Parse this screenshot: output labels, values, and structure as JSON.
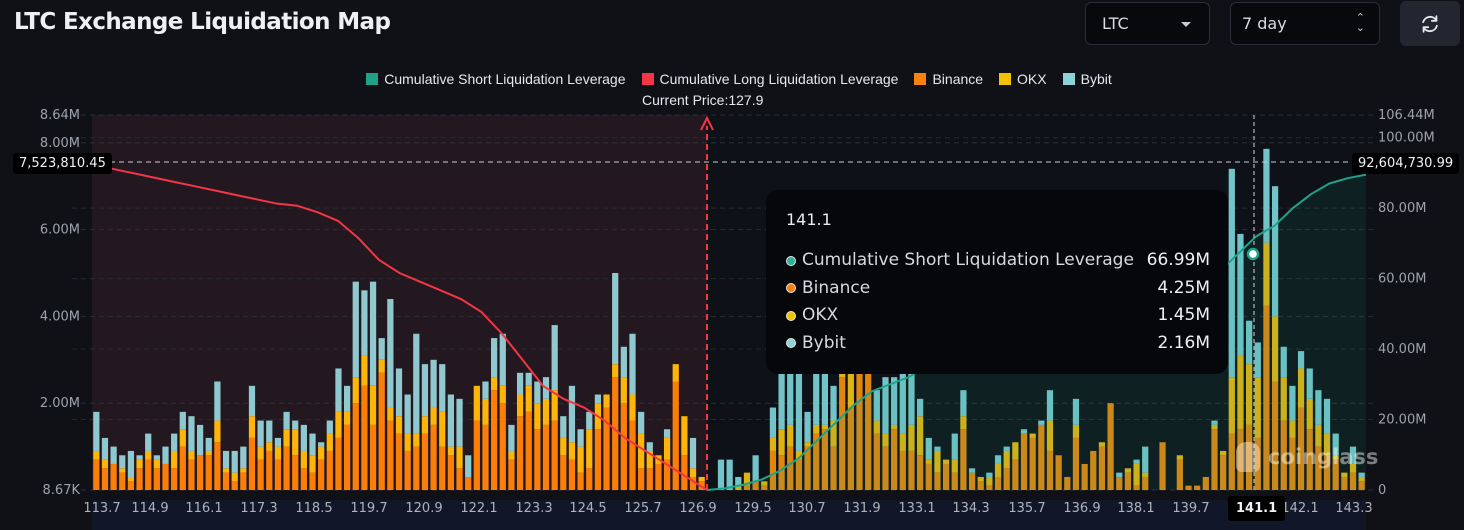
{
  "header": {
    "title": "LTC Exchange Liquidation Map",
    "coin_select": {
      "value": "LTC",
      "icon": "caret-down-icon"
    },
    "range_select": {
      "value": "7 day",
      "icon": "up-down-chevron-icon"
    },
    "refresh_button": {
      "icon": "refresh-icon"
    }
  },
  "chart_data": {
    "type": "bar",
    "title": "LTC Exchange Liquidation Map",
    "legend": [
      {
        "name": "Cumulative Short Liquidation Leverage",
        "color": "#1fa28a"
      },
      {
        "name": "Cumulative Long Liquidation Leverage",
        "color": "#f23645"
      },
      {
        "name": "Binance",
        "color": "#f7810e"
      },
      {
        "name": "OKX",
        "color": "#f5c000"
      },
      {
        "name": "Bybit",
        "color": "#8bd3d8"
      }
    ],
    "legend_position": "top-center",
    "current_price_label": "Current Price:127.9",
    "current_price": 127.9,
    "x_tick_labels": [
      "113.7",
      "114.9",
      "116.1",
      "117.3",
      "118.5",
      "119.7",
      "120.9",
      "122.1",
      "123.3",
      "124.5",
      "125.7",
      "126.9",
      "129.5",
      "130.7",
      "131.9",
      "133.1",
      "134.3",
      "135.7",
      "136.9",
      "138.1",
      "139.7",
      "141.1",
      "142.1",
      "143.3"
    ],
    "y_left": {
      "ticks": [
        "8.67K",
        "2.00M",
        "4.00M",
        "6.00M",
        "8.00M",
        "8.64M"
      ],
      "min": 0.00867,
      "max": 8.64,
      "unit": "M"
    },
    "y_right": {
      "ticks": [
        "0",
        "20.00M",
        "40.00M",
        "60.00M",
        "80.00M",
        "100.00M",
        "106.44M"
      ],
      "min": 0,
      "max": 106.44,
      "unit": "M"
    },
    "grid": true,
    "crosshair": {
      "x_label": "141.1",
      "left_value_label": "7,523,810.45",
      "right_value_label": "92,604,730.99"
    },
    "bars_long_side": {
      "binance": [
        0.7,
        0.5,
        0.6,
        0.4,
        0.2,
        0.5,
        0.7,
        0.5,
        0.6,
        0.5,
        1.0,
        0.7,
        0.8,
        0.8,
        1.1,
        0.4,
        0.2,
        0.4,
        1.2,
        0.7,
        0.9,
        0.7,
        1.0,
        0.8,
        0.5,
        0.4,
        0.7,
        0.9,
        1.2,
        1.5,
        2.0,
        2.4,
        1.5,
        2.7,
        1.6,
        1.3,
        0.9,
        1.0,
        1.3,
        1.5,
        1.0,
        0.8,
        0.5,
        0.3,
        1.6,
        1.5,
        2.3,
        2.0,
        0.7,
        1.7,
        1.8,
        1.4,
        1.5,
        1.6,
        0.8,
        0.7,
        0.4,
        0.5,
        1.4,
        1.9,
        2.6,
        2.0,
        1.6,
        0.5,
        0.5,
        0.6,
        0.7,
        2.5,
        0.8,
        0.3,
        0.2
      ],
      "okx": [
        0.2,
        0.2,
        0.0,
        0.1,
        0.1,
        0.2,
        0.2,
        0.2,
        0.0,
        0.4,
        0.4,
        0.2,
        0.0,
        0.1,
        0.5,
        0.1,
        0.2,
        0.1,
        0.5,
        0.3,
        0.2,
        0.3,
        0.4,
        0.6,
        0.4,
        0.4,
        0.3,
        0.4,
        0.6,
        0.3,
        0.6,
        0.7,
        0.9,
        0.3,
        0.3,
        0.4,
        0.4,
        0.3,
        0.4,
        0.4,
        0.8,
        0.2,
        0.5,
        0.0,
        0.8,
        0.6,
        0.3,
        0.4,
        0.2,
        0.5,
        0.6,
        0.6,
        0.6,
        0.7,
        0.4,
        0.4,
        0.6,
        0.9,
        0.6,
        0.3,
        0.3,
        0.6,
        0.6,
        0.8,
        0.4,
        0.2,
        0.5,
        0.4,
        0.9,
        0.2,
        0.1
      ],
      "bybit": [
        0.9,
        0.5,
        0.4,
        0.3,
        0.6,
        0.1,
        0.4,
        0.1,
        0.4,
        0.4,
        0.4,
        0.8,
        0.7,
        0.3,
        0.9,
        0.4,
        0.5,
        0.5,
        0.7,
        0.6,
        0.5,
        0.2,
        0.4,
        0.2,
        0.6,
        0.5,
        0.1,
        0.3,
        1.0,
        0.6,
        2.2,
        1.5,
        2.4,
        0.5,
        2.5,
        1.1,
        0.9,
        2.3,
        1.2,
        1.1,
        1.1,
        1.2,
        1.1,
        0.5,
        0.0,
        0.4,
        0.9,
        1.2,
        0.6,
        0.5,
        0.3,
        0.5,
        0.5,
        1.5,
        0.5,
        1.3,
        0.4,
        0.4,
        0.2,
        0.0,
        2.1,
        0.7,
        1.4,
        0.5,
        0.2,
        0.0,
        0.2,
        0.0,
        0.0,
        0.7,
        0.0
      ]
    },
    "bars_short_side": {
      "binance": [
        0.0,
        0.0,
        0.0,
        0.0,
        0.1,
        0.2,
        0.1,
        0.9,
        0.8,
        1.0,
        0.7,
        1.0,
        1.3,
        1.4,
        1.0,
        2.6,
        1.9,
        2.7,
        3.3,
        1.3,
        1.0,
        1.4,
        0.9,
        0.9,
        0.8,
        0.6,
        0.4,
        0.6,
        0.4,
        1.4,
        0.4,
        0.2,
        0.1,
        0.3,
        0.5,
        0.7,
        1.3,
        1.2,
        1.5,
        0.9,
        0.8,
        0.3,
        1.2,
        0.6,
        0.9,
        1.0,
        2.0,
        0.3,
        0.4,
        0.1,
        0.3,
        0.0,
        1.1,
        0.0,
        0.7,
        0.1,
        0.1,
        0.3,
        1.4,
        0.8,
        1.3,
        1.4,
        1.5,
        1.2,
        4.25,
        2.5,
        1.6,
        1.2,
        1.9,
        1.4,
        1.0,
        0.8,
        0.7,
        0.3,
        0.4,
        0.2
      ],
      "okx": [
        0.0,
        0.0,
        0.0,
        0.1,
        0.3,
        0.0,
        0.1,
        0.3,
        0.6,
        0.5,
        0.2,
        0.1,
        0.2,
        0.1,
        0.6,
        0.1,
        0.8,
        0.5,
        0.3,
        0.3,
        0.3,
        0.1,
        0.4,
        0.6,
        0.9,
        0.1,
        0.5,
        0.1,
        0.3,
        0.3,
        0.0,
        0.1,
        0.2,
        0.3,
        0.4,
        0.4,
        0.0,
        0.1,
        0.0,
        0.7,
        0.0,
        0.0,
        0.3,
        0.0,
        0.0,
        0.1,
        0.0,
        0.0,
        0.1,
        0.5,
        0.1,
        0.0,
        0.0,
        0.0,
        0.1,
        0.0,
        0.0,
        0.0,
        0.1,
        0.1,
        1.3,
        1.7,
        1.4,
        1.4,
        1.45,
        1.5,
        1.0,
        0.4,
        0.9,
        0.7,
        0.5,
        0.5,
        0.1,
        0.1,
        0.2,
        0.1
      ],
      "bybit": [
        0.0,
        0.7,
        0.7,
        0.2,
        0.0,
        0.6,
        0.0,
        0.7,
        2.3,
        2.3,
        2.2,
        0.7,
        1.6,
        3.0,
        0.8,
        3.1,
        0.9,
        0.3,
        0.4,
        0.7,
        1.3,
        1.1,
        1.4,
        1.5,
        0.4,
        0.5,
        0.1,
        0.0,
        0.6,
        0.6,
        0.1,
        0.0,
        0.1,
        0.2,
        0.1,
        0.0,
        0.1,
        0.0,
        0.1,
        0.7,
        0.0,
        0.0,
        0.6,
        0.0,
        0.0,
        0.0,
        0.0,
        0.1,
        0.0,
        0.1,
        0.6,
        0.0,
        0.0,
        0.0,
        0.0,
        0.0,
        0.0,
        0.0,
        0.1,
        0.0,
        4.8,
        2.8,
        1.0,
        0.8,
        2.16,
        3.0,
        0.7,
        0.8,
        0.4,
        0.7,
        0.8,
        0.8,
        0.5,
        0.0,
        0.4,
        0.1
      ]
    },
    "cumulative_long": {
      "x_range": [
        "113.7",
        "126.9"
      ],
      "values_M": [
        7.52,
        7.4,
        7.3,
        7.2,
        7.1,
        7.0,
        6.9,
        6.8,
        6.7,
        6.6,
        6.55,
        6.4,
        6.2,
        5.8,
        5.3,
        5.0,
        4.8,
        4.6,
        4.4,
        4.1,
        3.6,
        3.0,
        2.4,
        2.1,
        1.9,
        1.6,
        1.2,
        0.9,
        0.6,
        0.3,
        0.0
      ]
    },
    "cumulative_short": {
      "x_range": [
        "126.9",
        "143.3"
      ],
      "values_M": [
        0.0,
        0.5,
        1.5,
        3.0,
        5.5,
        9.0,
        14.0,
        19.0,
        24.0,
        28.0,
        30.0,
        32.0,
        35.0,
        38.0,
        40.0,
        42.0,
        43.0,
        44.0,
        45.0,
        46.0,
        47.0,
        48.5,
        50.0,
        52.0,
        54.0,
        56.0,
        58.0,
        60.0,
        62.0,
        66.99,
        72.0,
        75.0,
        80.0,
        84.0,
        87.0,
        88.5,
        89.5
      ]
    },
    "tooltip": {
      "title": "141.1",
      "rows": [
        {
          "label": "Cumulative Short Liquidation Leverage",
          "value": "66.99M",
          "color": "#2bb39a"
        },
        {
          "label": "Binance",
          "value": "4.25M",
          "color": "#f7810e"
        },
        {
          "label": "OKX",
          "value": "1.45M",
          "color": "#f5c000"
        },
        {
          "label": "Bybit",
          "value": "2.16M",
          "color": "#8bd3d8"
        }
      ]
    },
    "watermark": "coinglass"
  }
}
